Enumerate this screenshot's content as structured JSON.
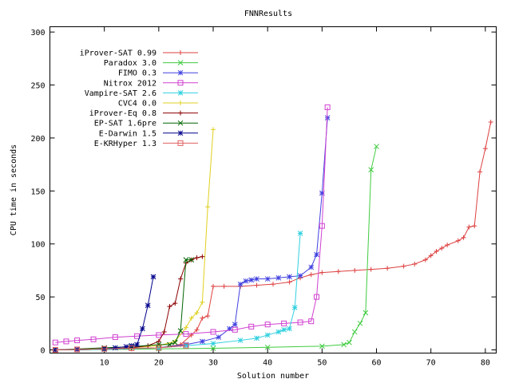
{
  "chart_data": {
    "type": "line",
    "title": "FNNResults",
    "xlabel": "Solution number",
    "ylabel": "CPU time in seconds",
    "xlim": [
      0,
      82
    ],
    "ylim": [
      -3,
      305
    ],
    "xticks": [
      10,
      20,
      30,
      40,
      50,
      60,
      70,
      80
    ],
    "yticks": [
      0,
      50,
      100,
      150,
      200,
      250,
      300
    ],
    "grid": false,
    "legend_position": "top-left",
    "series": [
      {
        "name": "iProver-SAT 0.99",
        "color": "#dd4040",
        "marker": "plus",
        "points": [
          [
            1,
            0
          ],
          [
            5,
            0
          ],
          [
            10,
            0.5
          ],
          [
            15,
            1
          ],
          [
            20,
            2
          ],
          [
            24,
            5
          ],
          [
            26,
            14
          ],
          [
            27,
            19
          ],
          [
            28,
            30
          ],
          [
            29,
            32
          ],
          [
            30,
            60
          ],
          [
            32,
            60
          ],
          [
            35,
            60
          ],
          [
            38,
            61
          ],
          [
            41,
            62
          ],
          [
            44,
            64
          ],
          [
            46,
            68
          ],
          [
            48,
            71
          ],
          [
            50,
            73
          ],
          [
            53,
            74
          ],
          [
            56,
            75
          ],
          [
            59,
            76
          ],
          [
            62,
            77
          ],
          [
            65,
            79
          ],
          [
            67,
            81
          ],
          [
            69,
            85
          ],
          [
            70,
            89
          ],
          [
            71,
            93
          ],
          [
            72,
            96
          ],
          [
            73,
            99
          ],
          [
            75,
            103
          ],
          [
            76,
            106
          ],
          [
            77,
            116
          ],
          [
            78,
            117
          ],
          [
            79,
            168
          ],
          [
            80,
            190
          ],
          [
            81,
            215
          ]
        ]
      },
      {
        "name": "Paradox 3.0",
        "color": "#40cc40",
        "marker": "x",
        "points": [
          [
            1,
            0
          ],
          [
            10,
            0.3
          ],
          [
            20,
            1
          ],
          [
            30,
            1.5
          ],
          [
            40,
            2.5
          ],
          [
            50,
            3.5
          ],
          [
            54,
            5
          ],
          [
            55,
            7
          ],
          [
            56,
            17
          ],
          [
            57,
            25
          ],
          [
            58,
            35
          ],
          [
            59,
            170
          ],
          [
            60,
            192
          ]
        ]
      },
      {
        "name": "FIMO 0.3",
        "color": "#4040e0",
        "marker": "star",
        "points": [
          [
            1,
            0
          ],
          [
            10,
            0.5
          ],
          [
            20,
            2
          ],
          [
            25,
            5
          ],
          [
            28,
            8
          ],
          [
            31,
            12
          ],
          [
            33,
            20
          ],
          [
            34,
            24
          ],
          [
            35,
            62
          ],
          [
            36,
            65
          ],
          [
            37,
            66
          ],
          [
            38,
            67
          ],
          [
            40,
            67
          ],
          [
            42,
            68
          ],
          [
            44,
            69
          ],
          [
            46,
            70
          ],
          [
            48,
            78
          ],
          [
            49,
            90
          ],
          [
            50,
            148
          ],
          [
            51,
            219
          ]
        ]
      },
      {
        "name": "Nitrox 2012",
        "color": "#d040d0",
        "marker": "square",
        "points": [
          [
            1,
            7
          ],
          [
            3,
            8
          ],
          [
            5,
            9
          ],
          [
            8,
            10
          ],
          [
            12,
            12
          ],
          [
            16,
            13
          ],
          [
            20,
            14
          ],
          [
            25,
            15
          ],
          [
            30,
            17
          ],
          [
            34,
            19
          ],
          [
            37,
            22
          ],
          [
            40,
            24
          ],
          [
            43,
            25
          ],
          [
            46,
            26
          ],
          [
            48,
            27
          ],
          [
            49,
            50
          ],
          [
            50,
            117
          ],
          [
            51,
            229
          ]
        ]
      },
      {
        "name": "Vampire-SAT 2.6",
        "color": "#30d0e0",
        "marker": "star",
        "points": [
          [
            1,
            0
          ],
          [
            10,
            0.5
          ],
          [
            20,
            2
          ],
          [
            25,
            4
          ],
          [
            30,
            6
          ],
          [
            35,
            9
          ],
          [
            38,
            11
          ],
          [
            40,
            14
          ],
          [
            42,
            17
          ],
          [
            43,
            19
          ],
          [
            44,
            20
          ],
          [
            45,
            40
          ],
          [
            46,
            110
          ]
        ]
      },
      {
        "name": "CVC4 0.0",
        "color": "#e0d020",
        "marker": "plus",
        "points": [
          [
            1,
            0
          ],
          [
            10,
            1
          ],
          [
            15,
            2
          ],
          [
            20,
            4
          ],
          [
            23,
            8
          ],
          [
            25,
            21
          ],
          [
            26,
            30
          ],
          [
            27,
            35
          ],
          [
            28,
            45
          ],
          [
            29,
            135
          ],
          [
            30,
            208
          ]
        ]
      },
      {
        "name": "iProver-Eq 0.8",
        "color": "#8b0000",
        "marker": "plus",
        "points": [
          [
            1,
            0
          ],
          [
            10,
            1
          ],
          [
            15,
            2
          ],
          [
            18,
            4
          ],
          [
            20,
            8
          ],
          [
            21,
            17
          ],
          [
            22,
            41
          ],
          [
            23,
            44
          ],
          [
            24,
            67
          ],
          [
            25,
            82
          ],
          [
            26,
            85
          ],
          [
            27,
            87
          ],
          [
            28,
            88
          ]
        ]
      },
      {
        "name": "EP-SAT 1.6pre",
        "color": "#006400",
        "marker": "x",
        "points": [
          [
            1,
            0
          ],
          [
            10,
            2
          ],
          [
            15,
            3
          ],
          [
            20,
            5
          ],
          [
            22,
            5
          ],
          [
            23,
            7
          ],
          [
            24,
            18
          ],
          [
            25,
            85
          ],
          [
            26,
            85
          ]
        ]
      },
      {
        "name": "E-Darwin 1.5",
        "color": "#00008b",
        "marker": "star",
        "points": [
          [
            1,
            0
          ],
          [
            5,
            0.5
          ],
          [
            10,
            1
          ],
          [
            12,
            2
          ],
          [
            14,
            3
          ],
          [
            15,
            4
          ],
          [
            16,
            5
          ],
          [
            17,
            20
          ],
          [
            18,
            42
          ],
          [
            19,
            69
          ]
        ]
      },
      {
        "name": "E-KRHyper 1.3",
        "color": "#e06060",
        "marker": "square",
        "points": [
          [
            1,
            0
          ],
          [
            5,
            0.5
          ],
          [
            10,
            1
          ],
          [
            15,
            1.5
          ],
          [
            20,
            2
          ],
          [
            25,
            4
          ]
        ]
      }
    ]
  }
}
